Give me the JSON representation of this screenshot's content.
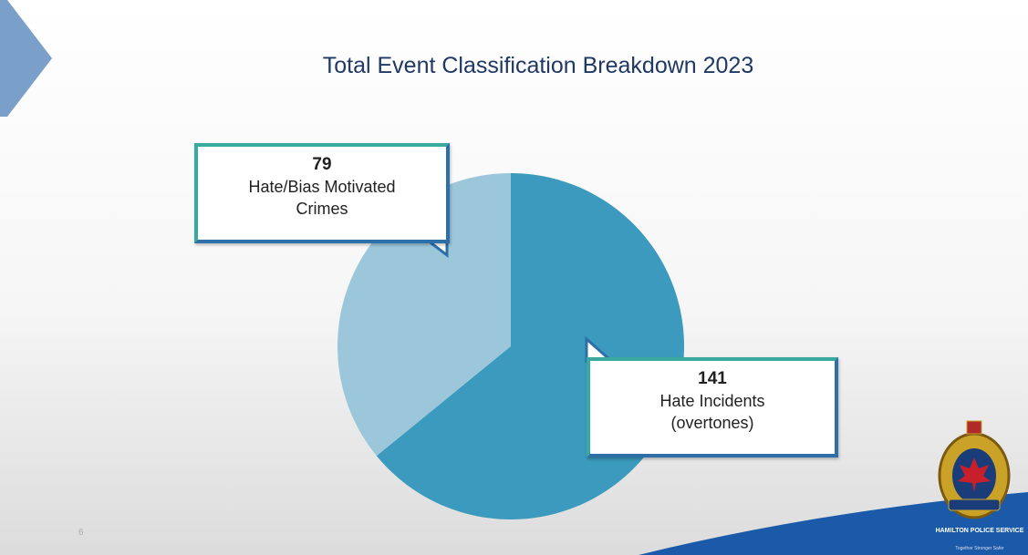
{
  "chart_data": {
    "type": "pie",
    "title": "Total Event Classification Breakdown 2023",
    "categories": [
      "Hate/Bias Motivated Crimes",
      "Hate Incidents (overtones)"
    ],
    "values": [
      79,
      141
    ],
    "colors": [
      "#9cc7db",
      "#3b9abd"
    ]
  },
  "page_number": "6",
  "logo": {
    "name": "HAMILTON POLICE SERVICE",
    "motto": "Together Stronger Safer"
  }
}
